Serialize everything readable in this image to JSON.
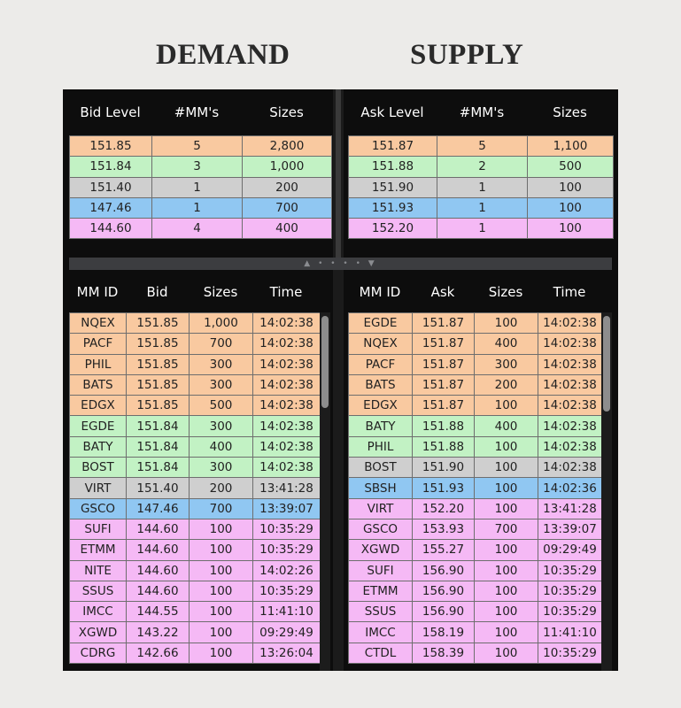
{
  "headings": {
    "demand": "DEMAND",
    "supply": "SUPPLY"
  },
  "colors": {
    "level1": "#f9c9a0",
    "level2": "#c2f2c4",
    "level3": "#cfcfcf",
    "level4": "#90c7f2",
    "level5": "#f5b9f5"
  },
  "bid_summary": {
    "headers": [
      "Bid Level",
      "#MM's",
      "Sizes"
    ],
    "rows": [
      {
        "level": "151.85",
        "mms": "5",
        "size": "2,800",
        "color": "#f9c9a0"
      },
      {
        "level": "151.84",
        "mms": "3",
        "size": "1,000",
        "color": "#c2f2c4"
      },
      {
        "level": "151.40",
        "mms": "1",
        "size": "200",
        "color": "#cfcfcf"
      },
      {
        "level": "147.46",
        "mms": "1",
        "size": "700",
        "color": "#90c7f2"
      },
      {
        "level": "144.60",
        "mms": "4",
        "size": "400",
        "color": "#f5b9f5"
      }
    ]
  },
  "ask_summary": {
    "headers": [
      "Ask Level",
      "#MM's",
      "Sizes"
    ],
    "rows": [
      {
        "level": "151.87",
        "mms": "5",
        "size": "1,100",
        "color": "#f9c9a0"
      },
      {
        "level": "151.88",
        "mms": "2",
        "size": "500",
        "color": "#c2f2c4"
      },
      {
        "level": "151.90",
        "mms": "1",
        "size": "100",
        "color": "#cfcfcf"
      },
      {
        "level": "151.93",
        "mms": "1",
        "size": "100",
        "color": "#90c7f2"
      },
      {
        "level": "152.20",
        "mms": "1",
        "size": "100",
        "color": "#f5b9f5"
      }
    ]
  },
  "bid_book": {
    "headers": [
      "MM ID",
      "Bid",
      "Sizes",
      "Time"
    ],
    "rows": [
      {
        "mm": "NQEX",
        "price": "151.85",
        "size": "1,000",
        "time": "14:02:38",
        "color": "#f9c9a0"
      },
      {
        "mm": "PACF",
        "price": "151.85",
        "size": "700",
        "time": "14:02:38",
        "color": "#f9c9a0"
      },
      {
        "mm": "PHIL",
        "price": "151.85",
        "size": "300",
        "time": "14:02:38",
        "color": "#f9c9a0"
      },
      {
        "mm": "BATS",
        "price": "151.85",
        "size": "300",
        "time": "14:02:38",
        "color": "#f9c9a0"
      },
      {
        "mm": "EDGX",
        "price": "151.85",
        "size": "500",
        "time": "14:02:38",
        "color": "#f9c9a0"
      },
      {
        "mm": "EGDE",
        "price": "151.84",
        "size": "300",
        "time": "14:02:38",
        "color": "#c2f2c4"
      },
      {
        "mm": "BATY",
        "price": "151.84",
        "size": "400",
        "time": "14:02:38",
        "color": "#c2f2c4"
      },
      {
        "mm": "BOST",
        "price": "151.84",
        "size": "300",
        "time": "14:02:38",
        "color": "#c2f2c4"
      },
      {
        "mm": "VIRT",
        "price": "151.40",
        "size": "200",
        "time": "13:41:28",
        "color": "#cfcfcf"
      },
      {
        "mm": "GSCO",
        "price": "147.46",
        "size": "700",
        "time": "13:39:07",
        "color": "#90c7f2"
      },
      {
        "mm": "SUFI",
        "price": "144.60",
        "size": "100",
        "time": "10:35:29",
        "color": "#f5b9f5"
      },
      {
        "mm": "ETMM",
        "price": "144.60",
        "size": "100",
        "time": "10:35:29",
        "color": "#f5b9f5"
      },
      {
        "mm": "NITE",
        "price": "144.60",
        "size": "100",
        "time": "14:02:26",
        "color": "#f5b9f5"
      },
      {
        "mm": "SSUS",
        "price": "144.60",
        "size": "100",
        "time": "10:35:29",
        "color": "#f5b9f5"
      },
      {
        "mm": "IMCC",
        "price": "144.55",
        "size": "100",
        "time": "11:41:10",
        "color": "#f5b9f5"
      },
      {
        "mm": "XGWD",
        "price": "143.22",
        "size": "100",
        "time": "09:29:49",
        "color": "#f5b9f5"
      },
      {
        "mm": "CDRG",
        "price": "142.66",
        "size": "100",
        "time": "13:26:04",
        "color": "#f5b9f5"
      }
    ]
  },
  "ask_book": {
    "headers": [
      "MM ID",
      "Ask",
      "Sizes",
      "Time"
    ],
    "rows": [
      {
        "mm": "EGDE",
        "price": "151.87",
        "size": "100",
        "time": "14:02:38",
        "color": "#f9c9a0"
      },
      {
        "mm": "NQEX",
        "price": "151.87",
        "size": "400",
        "time": "14:02:38",
        "color": "#f9c9a0"
      },
      {
        "mm": "PACF",
        "price": "151.87",
        "size": "300",
        "time": "14:02:38",
        "color": "#f9c9a0"
      },
      {
        "mm": "BATS",
        "price": "151.87",
        "size": "200",
        "time": "14:02:38",
        "color": "#f9c9a0"
      },
      {
        "mm": "EDGX",
        "price": "151.87",
        "size": "100",
        "time": "14:02:38",
        "color": "#f9c9a0"
      },
      {
        "mm": "BATY",
        "price": "151.88",
        "size": "400",
        "time": "14:02:38",
        "color": "#c2f2c4"
      },
      {
        "mm": "PHIL",
        "price": "151.88",
        "size": "100",
        "time": "14:02:38",
        "color": "#c2f2c4"
      },
      {
        "mm": "BOST",
        "price": "151.90",
        "size": "100",
        "time": "14:02:38",
        "color": "#cfcfcf"
      },
      {
        "mm": "SBSH",
        "price": "151.93",
        "size": "100",
        "time": "14:02:36",
        "color": "#90c7f2"
      },
      {
        "mm": "VIRT",
        "price": "152.20",
        "size": "100",
        "time": "13:41:28",
        "color": "#f5b9f5"
      },
      {
        "mm": "GSCO",
        "price": "153.93",
        "size": "700",
        "time": "13:39:07",
        "color": "#f5b9f5"
      },
      {
        "mm": "XGWD",
        "price": "155.27",
        "size": "100",
        "time": "09:29:49",
        "color": "#f5b9f5"
      },
      {
        "mm": "SUFI",
        "price": "156.90",
        "size": "100",
        "time": "10:35:29",
        "color": "#f5b9f5"
      },
      {
        "mm": "ETMM",
        "price": "156.90",
        "size": "100",
        "time": "10:35:29",
        "color": "#f5b9f5"
      },
      {
        "mm": "SSUS",
        "price": "156.90",
        "size": "100",
        "time": "10:35:29",
        "color": "#f5b9f5"
      },
      {
        "mm": "IMCC",
        "price": "158.19",
        "size": "100",
        "time": "11:41:10",
        "color": "#f5b9f5"
      },
      {
        "mm": "CTDL",
        "price": "158.39",
        "size": "100",
        "time": "10:35:29",
        "color": "#f5b9f5"
      }
    ]
  },
  "icons": {
    "splitter": "splitter-grip-icon"
  }
}
